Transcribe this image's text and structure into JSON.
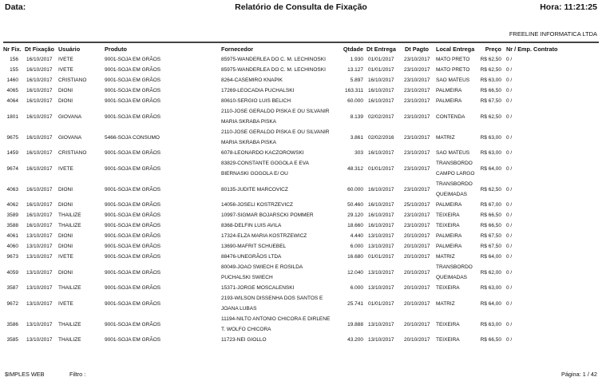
{
  "header": {
    "date_label": "Data:",
    "title": "Relatório de Consulta de Fixação",
    "time": "Hora: 11:21:25",
    "company": "FREELINE INFORMATICA LTDA"
  },
  "columns": {
    "nr_fix": "Nr Fix.",
    "dt_fixacao": "Dt Fixação",
    "usuario": "Usuário",
    "produto": "Produto",
    "fornecedor": "Fornecedor",
    "qtdade": "Qtdade",
    "dt_entrega": "Dt Entrega",
    "dt_pagto": "Dt Pagto",
    "local_entrega": "Local Entrega",
    "preco": "Preço",
    "contrato": "Nr / Emp. Contrato"
  },
  "rows": [
    {
      "nr": "156",
      "dt_fix": "16/10/2017",
      "usuario": "IVETE",
      "produto": "9001-SOJA EM GRÃOS",
      "fornecedor": [
        "85975-WANDERLEA DO C. M. LECHINOSKI"
      ],
      "qtd": "1.930",
      "dt_entrega": "01/01/2017",
      "dt_pagto": "23/10/2017",
      "local": [
        "MATO PRETO"
      ],
      "preco": "R$ 62,50",
      "contrato": "0 /"
    },
    {
      "nr": "155",
      "dt_fix": "16/10/2017",
      "usuario": "IVETE",
      "produto": "9001-SOJA EM GRÃOS",
      "fornecedor": [
        "85975-WANDERLEA DO C. M. LECHINOSKI"
      ],
      "qtd": "13.127",
      "dt_entrega": "01/01/2017",
      "dt_pagto": "23/10/2017",
      "local": [
        "MATO PRETO"
      ],
      "preco": "R$ 62,50",
      "contrato": "0 /"
    },
    {
      "nr": "1460",
      "dt_fix": "16/10/2017",
      "usuario": "CRISTIANO",
      "produto": "9001-SOJA EM GRÃOS",
      "fornecedor": [
        "8264-CASEMIRO KNAPIK"
      ],
      "qtd": "5.897",
      "dt_entrega": "16/10/2017",
      "dt_pagto": "23/10/2017",
      "local": [
        "SAO MATEUS"
      ],
      "preco": "R$ 63,00",
      "contrato": "0 /"
    },
    {
      "nr": "4065",
      "dt_fix": "16/10/2017",
      "usuario": "DIONI",
      "produto": "9001-SOJA EM GRÃOS",
      "fornecedor": [
        "17269-LEOCADIA PUCHALSKI"
      ],
      "qtd": "163.311",
      "dt_entrega": "16/10/2017",
      "dt_pagto": "23/10/2017",
      "local": [
        "PALMEIRA"
      ],
      "preco": "R$ 66,50",
      "contrato": "0 /"
    },
    {
      "nr": "4064",
      "dt_fix": "16/10/2017",
      "usuario": "DIONI",
      "produto": "9001-SOJA EM GRÃOS",
      "fornecedor": [
        "80610-SERGIO LUIS BELICH"
      ],
      "qtd": "60.000",
      "dt_entrega": "16/10/2017",
      "dt_pagto": "23/10/2017",
      "local": [
        "PALMEIRA"
      ],
      "preco": "R$ 67,50",
      "contrato": "0 /"
    },
    {
      "nr": "1801",
      "dt_fix": "16/10/2017",
      "usuario": "GIOVANA",
      "produto": "9001-SOJA EM GRÃOS",
      "fornecedor": [
        "2110-JOSE GERALDO PISKA E OU SILVANIR",
        "MARIA SKRABA PISKA"
      ],
      "qtd": "8.139",
      "dt_entrega": "02/02/2017",
      "dt_pagto": "23/10/2017",
      "local": [
        "CONTENDA"
      ],
      "preco": "R$ 62,50",
      "contrato": "0 /"
    },
    {
      "nr": "9675",
      "dt_fix": "16/10/2017",
      "usuario": "GIOVANA",
      "produto": "5466-SOJA CONSUMO",
      "fornecedor": [
        "2110-JOSE GERALDO PISKA E OU SILVANIR",
        "MARIA SKRABA PISKA"
      ],
      "qtd": "3.861",
      "dt_entrega": "02/02/2016",
      "dt_pagto": "23/10/2017",
      "local": [
        "MATRIZ"
      ],
      "preco": "R$ 63,00",
      "contrato": "0 /"
    },
    {
      "nr": "1459",
      "dt_fix": "16/10/2017",
      "usuario": "CRISTIANO",
      "produto": "9001-SOJA EM GRÃOS",
      "fornecedor": [
        "6078-LEONARDO KACZOROWSKI"
      ],
      "qtd": "303",
      "dt_entrega": "16/10/2017",
      "dt_pagto": "23/10/2017",
      "local": [
        "SAO MATEUS"
      ],
      "preco": "R$ 63,00",
      "contrato": "0 /"
    },
    {
      "nr": "9674",
      "dt_fix": "16/10/2017",
      "usuario": "IVETE",
      "produto": "9001-SOJA EM GRÃOS",
      "fornecedor": [
        "83829-CONSTANTE GOGOLA E EVA",
        "BIERNASKI GOGOLA E/ OU"
      ],
      "qtd": "48.312",
      "dt_entrega": "01/01/2017",
      "dt_pagto": "23/10/2017",
      "local": [
        "TRANSBORDO",
        "CAMPO LARGO"
      ],
      "preco": "R$ 64,00",
      "contrato": "0 /"
    },
    {
      "nr": "4063",
      "dt_fix": "16/10/2017",
      "usuario": "DIONI",
      "produto": "9001-SOJA EM GRÃOS",
      "fornecedor": [
        "80135-JUDITE MARCOVICZ"
      ],
      "qtd": "60.000",
      "dt_entrega": "16/10/2017",
      "dt_pagto": "23/10/2017",
      "local": [
        "TRANSBORDO",
        "QUEIMADAS"
      ],
      "preco": "R$ 62,50",
      "contrato": "0 /"
    },
    {
      "nr": "4062",
      "dt_fix": "16/10/2017",
      "usuario": "DIONI",
      "produto": "9001-SOJA EM GRÃOS",
      "fornecedor": [
        "14056-JOSELI KOSTRZEVICZ"
      ],
      "qtd": "50.460",
      "dt_entrega": "16/10/2017",
      "dt_pagto": "25/10/2017",
      "local": [
        "PALMEIRA"
      ],
      "preco": "R$ 67,00",
      "contrato": "0 /"
    },
    {
      "nr": "3589",
      "dt_fix": "16/10/2017",
      "usuario": "THAILIZE",
      "produto": "9001-SOJA EM GRÃOS",
      "fornecedor": [
        "10997-SIGMAR BOJARSCKI POMMER"
      ],
      "qtd": "29.120",
      "dt_entrega": "16/10/2017",
      "dt_pagto": "23/10/2017",
      "local": [
        "TEIXEIRA"
      ],
      "preco": "R$ 66,50",
      "contrato": "0 /"
    },
    {
      "nr": "3588",
      "dt_fix": "16/10/2017",
      "usuario": "THAILIZE",
      "produto": "9001-SOJA EM GRÃOS",
      "fornecedor": [
        "8368-DELFIN LUIS AVILA"
      ],
      "qtd": "18.660",
      "dt_entrega": "16/10/2017",
      "dt_pagto": "23/10/2017",
      "local": [
        "TEIXEIRA"
      ],
      "preco": "R$ 66,50",
      "contrato": "0 /"
    },
    {
      "nr": "4061",
      "dt_fix": "13/10/2017",
      "usuario": "DIONI",
      "produto": "9001-SOJA EM GRÃOS",
      "fornecedor": [
        "17324-ELZA MARIA KOSTRZEWICZ"
      ],
      "qtd": "4.440",
      "dt_entrega": "13/10/2017",
      "dt_pagto": "20/10/2017",
      "local": [
        "PALMEIRA"
      ],
      "preco": "R$ 67,50",
      "contrato": "0 /"
    },
    {
      "nr": "4060",
      "dt_fix": "13/10/2017",
      "usuario": "DIONI",
      "produto": "9001-SOJA EM GRÃOS",
      "fornecedor": [
        "13690-MAFRIT SCHUEBEL"
      ],
      "qtd": "6.000",
      "dt_entrega": "13/10/2017",
      "dt_pagto": "20/10/2017",
      "local": [
        "PALMEIRA"
      ],
      "preco": "R$ 67,50",
      "contrato": "0 /"
    },
    {
      "nr": "9673",
      "dt_fix": "13/10/2017",
      "usuario": "IVETE",
      "produto": "9001-SOJA EM GRÃOS",
      "fornecedor": [
        "88476-UNEGRÃOS LTDA"
      ],
      "qtd": "16.680",
      "dt_entrega": "01/01/2017",
      "dt_pagto": "20/10/2017",
      "local": [
        "MATRIZ"
      ],
      "preco": "R$ 64,00",
      "contrato": "0 /"
    },
    {
      "nr": "4059",
      "dt_fix": "13/10/2017",
      "usuario": "DIONI",
      "produto": "9001-SOJA EM GRÃOS",
      "fornecedor": [
        "80049-JOAO SWIECH E ROSILDA",
        "PUCHALSKI SWIECH"
      ],
      "qtd": "12.040",
      "dt_entrega": "13/10/2017",
      "dt_pagto": "20/10/2017",
      "local": [
        "TRANSBORDO",
        "QUEIMADAS"
      ],
      "preco": "R$ 62,00",
      "contrato": "0 /"
    },
    {
      "nr": "3587",
      "dt_fix": "13/10/2017",
      "usuario": "THAILIZE",
      "produto": "9001-SOJA EM GRÃOS",
      "fornecedor": [
        "15371-JORGE MOSCALENSKI"
      ],
      "qtd": "6.000",
      "dt_entrega": "13/10/2017",
      "dt_pagto": "20/10/2017",
      "local": [
        "TEIXEIRA"
      ],
      "preco": "R$ 63,00",
      "contrato": "0 /"
    },
    {
      "nr": "9672",
      "dt_fix": "13/10/2017",
      "usuario": "IVETE",
      "produto": "9001-SOJA EM GRÃOS",
      "fornecedor": [
        "2193-WILSON DISSENHA DOS SANTOS E",
        "JOANA LUBAS"
      ],
      "qtd": "25.741",
      "dt_entrega": "01/01/2017",
      "dt_pagto": "20/10/2017",
      "local": [
        "MATRIZ"
      ],
      "preco": "R$ 64,00",
      "contrato": "0 /"
    },
    {
      "nr": "3586",
      "dt_fix": "13/10/2017",
      "usuario": "THAILIZE",
      "produto": "9001-SOJA EM GRÃOS",
      "fornecedor": [
        "11194-NILTO ANTONIO CHICORA E DIRLENE",
        "T. WOLFO CHICORA"
      ],
      "qtd": "19.888",
      "dt_entrega": "13/10/2017",
      "dt_pagto": "20/10/2017",
      "local": [
        "TEIXEIRA"
      ],
      "preco": "R$ 63,00",
      "contrato": "0 /"
    },
    {
      "nr": "3585",
      "dt_fix": "13/10/2017",
      "usuario": "THAILIZE",
      "produto": "9001-SOJA EM GRÃOS",
      "fornecedor": [
        "11723-NEI GIOLLO"
      ],
      "qtd": "43.200",
      "dt_entrega": "13/10/2017",
      "dt_pagto": "20/10/2017",
      "local": [
        "TEIXEIRA"
      ],
      "preco": "R$ 66,50",
      "contrato": "0 /"
    }
  ],
  "footer": {
    "system": "$IMPLES WEB",
    "filter_label": "Filtro :",
    "page": "Página: 1 / 42"
  }
}
